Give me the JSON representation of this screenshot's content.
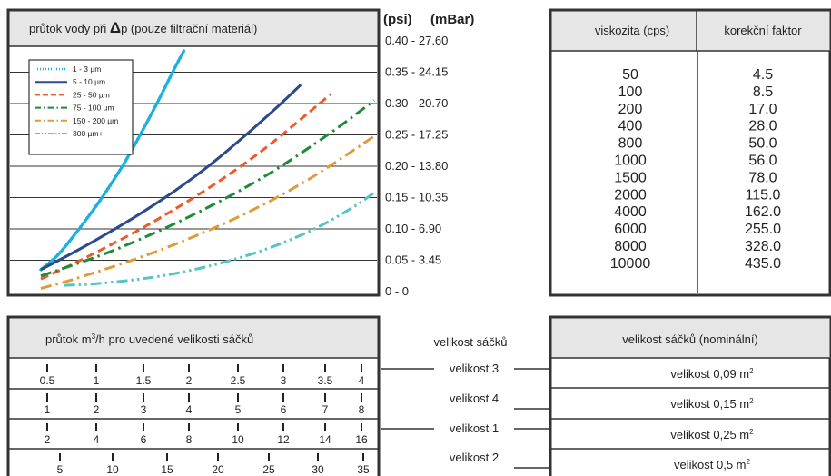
{
  "chart_panel": {
    "title_prefix": "průtok vody při ",
    "title_delta": "Δ",
    "title_suffix": "p (pouze filtrační materiál)",
    "unit_psi": "(psi)",
    "unit_mbar": "(mBar)",
    "right_labels": [
      "0.40 - 27.60",
      "0.35 - 24.15",
      "0.30 - 20.70",
      "0.25 - 17.25",
      "0.20 - 13.80",
      "0.15 - 10.35",
      "0.10 - 6.90",
      "0.05 - 3.45",
      "0      -  0"
    ]
  },
  "chart_data": {
    "type": "line",
    "title": "průtok vody při Δp (pouze filtrační materiál)",
    "xlabel": "",
    "ylabel": "(psi)  (mBar)",
    "ylim": [
      0,
      0.4
    ],
    "grid": true,
    "legend_position": "top-left",
    "series": [
      {
        "name": "1 - 3 µm",
        "color": "#1ab0e0",
        "dash": "dot",
        "x": [
          0.0,
          0.05,
          0.1,
          0.15,
          0.2,
          0.25,
          0.3,
          0.35,
          0.4,
          0.43
        ],
        "y": [
          0.035,
          0.058,
          0.09,
          0.125,
          0.163,
          0.205,
          0.252,
          0.302,
          0.355,
          0.385
        ]
      },
      {
        "name": "5 - 10 µm",
        "color": "#2d4a8c",
        "dash": "solid",
        "x": [
          0.0,
          0.1,
          0.2,
          0.3,
          0.4,
          0.5,
          0.6,
          0.7,
          0.78
        ],
        "y": [
          0.035,
          0.063,
          0.093,
          0.125,
          0.16,
          0.199,
          0.243,
          0.29,
          0.33
        ]
      },
      {
        "name": "25 - 50 µm",
        "color": "#ee5a2a",
        "dash": "dash",
        "x": [
          0.0,
          0.1,
          0.2,
          0.3,
          0.4,
          0.5,
          0.6,
          0.7,
          0.8,
          0.87
        ],
        "y": [
          0.02,
          0.045,
          0.072,
          0.1,
          0.131,
          0.164,
          0.2,
          0.24,
          0.284,
          0.315
        ]
      },
      {
        "name": "75 - 100 µm",
        "color": "#1e8b3a",
        "dash": "dashdot",
        "x": [
          0.0,
          0.1,
          0.2,
          0.3,
          0.4,
          0.5,
          0.6,
          0.7,
          0.8,
          0.9,
          1.0
        ],
        "y": [
          0.025,
          0.043,
          0.062,
          0.084,
          0.108,
          0.134,
          0.162,
          0.193,
          0.228,
          0.265,
          0.305
        ]
      },
      {
        "name": "150 - 200 µm",
        "color": "#e09a3a",
        "dash": "dashdot",
        "x": [
          0.0,
          0.1,
          0.2,
          0.3,
          0.4,
          0.5,
          0.6,
          0.7,
          0.8,
          0.9,
          1.0
        ],
        "y": [
          0.005,
          0.02,
          0.037,
          0.055,
          0.075,
          0.097,
          0.121,
          0.148,
          0.178,
          0.212,
          0.248
        ]
      },
      {
        "name": "300 µm+",
        "color": "#55c4c4",
        "dash": "dashdotdot",
        "x": [
          0.07,
          0.15,
          0.25,
          0.35,
          0.45,
          0.55,
          0.65,
          0.75,
          0.85,
          0.95,
          1.0
        ],
        "y": [
          0.01,
          0.012,
          0.017,
          0.024,
          0.034,
          0.047,
          0.063,
          0.083,
          0.108,
          0.139,
          0.158
        ]
      }
    ]
  },
  "viscosity_table": {
    "headers": [
      "viskozita (cps)",
      "korekční faktor"
    ],
    "viscosity": [
      "50",
      "100",
      "200",
      "400",
      "800",
      "1000",
      "1500",
      "2000",
      "4000",
      "6000",
      "8000",
      "10000"
    ],
    "factor": [
      "4.5",
      "8.5",
      "17.0",
      "28.0",
      "50.0",
      "56.0",
      "78.0",
      "115.0",
      "162.0",
      "255.0",
      "328.0",
      "435.0"
    ]
  },
  "flow_panel": {
    "title_main": "průtok m",
    "title_sup": "3",
    "title_rest": "/h pro uvedené velikosti sáčků",
    "rows": [
      [
        "0.5",
        "1",
        "1.5",
        "2",
        "2.5",
        "3",
        "3.5",
        "4"
      ],
      [
        "1",
        "2",
        "3",
        "4",
        "5",
        "6",
        "7",
        "8"
      ],
      [
        "2",
        "4",
        "6",
        "8",
        "10",
        "12",
        "14",
        "16"
      ],
      [
        "5",
        "10",
        "15",
        "20",
        "25",
        "30",
        "35"
      ]
    ]
  },
  "bag_link": {
    "header": "velikost sáčků",
    "items": [
      "velikost 3",
      "velikost 4",
      "velikost 1",
      "velikost 2"
    ]
  },
  "bag_table": {
    "header": "velikost sáčků (nominální)",
    "rows": [
      {
        "label": "velikost 0,09 m",
        "sup": "2"
      },
      {
        "label": "velikost 0,15 m",
        "sup": "2"
      },
      {
        "label": "velikost 0,25 m",
        "sup": "2"
      },
      {
        "label": "velikost 0,5 m",
        "sup": "2"
      }
    ]
  }
}
